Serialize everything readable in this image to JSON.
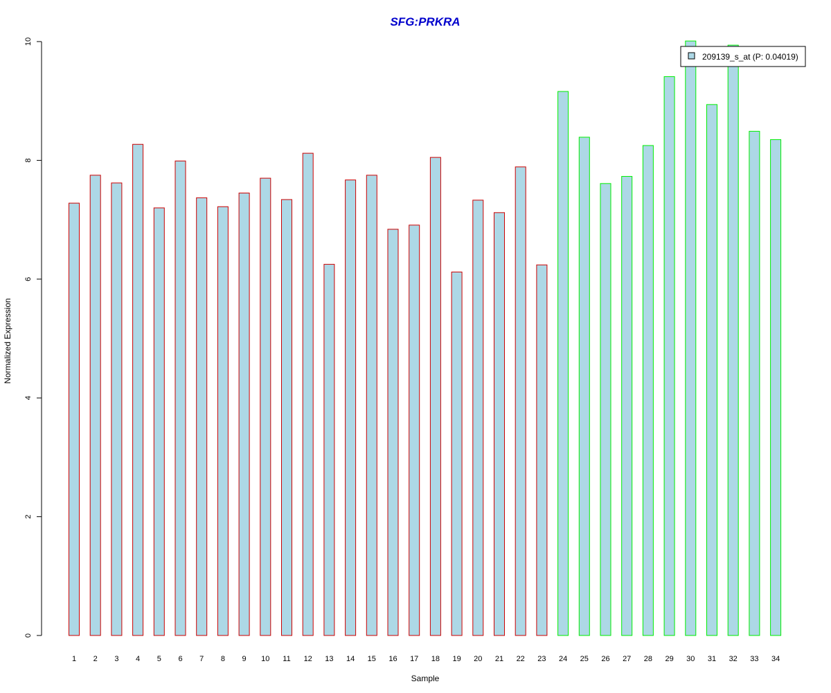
{
  "chart_data": {
    "type": "bar",
    "title": "SFG:PRKRA",
    "xlabel": "Sample",
    "ylabel": "Normalized Expression",
    "ylim": [
      0,
      10
    ],
    "yticks": [
      0,
      2,
      4,
      6,
      8,
      10
    ],
    "categories": [
      "1",
      "2",
      "3",
      "4",
      "5",
      "6",
      "7",
      "8",
      "9",
      "10",
      "11",
      "12",
      "13",
      "14",
      "15",
      "16",
      "17",
      "18",
      "19",
      "20",
      "21",
      "22",
      "23",
      "24",
      "25",
      "26",
      "27",
      "28",
      "29",
      "30",
      "31",
      "32",
      "33",
      "34"
    ],
    "series": [
      {
        "name": "209139_s_at (P: 0.04019)",
        "values": [
          7.28,
          7.75,
          7.62,
          8.27,
          7.2,
          7.99,
          7.37,
          7.22,
          7.45,
          7.7,
          7.34,
          8.12,
          6.25,
          7.67,
          7.75,
          6.84,
          6.91,
          8.05,
          6.12,
          7.33,
          7.12,
          7.89,
          6.24,
          9.16,
          8.39,
          7.61,
          7.73,
          8.25,
          9.41,
          10.01,
          8.94,
          9.94,
          8.49,
          8.35
        ]
      }
    ],
    "group_count_first": 23,
    "legend_position": "top-right"
  },
  "colors": {
    "title": "#0000cc",
    "bar_fill": "#add8e6",
    "group1_border": "#cc0000",
    "group2_border": "#00ee00",
    "axis": "#000000"
  }
}
